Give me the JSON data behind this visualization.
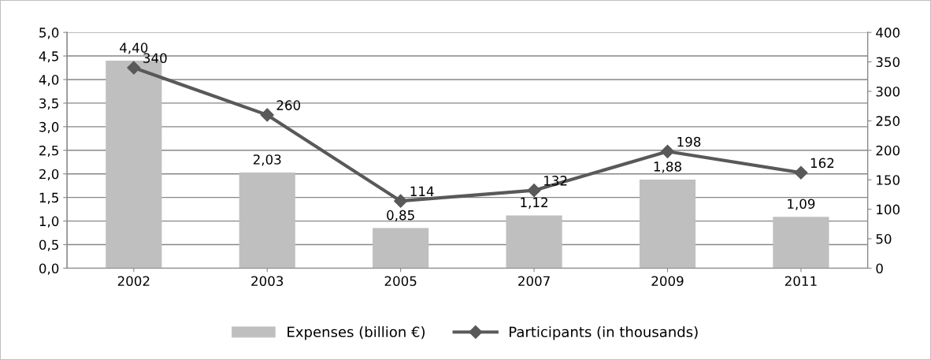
{
  "chart_data": {
    "type": "bar",
    "categories": [
      "2002",
      "2003",
      "2005",
      "2007",
      "2009",
      "2011"
    ],
    "series": [
      {
        "name": "Expenses (billion €)",
        "color": "#bfbfbf",
        "values": [
          4.4,
          2.03,
          0.85,
          1.12,
          1.88,
          1.09
        ],
        "value_labels": [
          "4,40",
          "2,03",
          "0,85",
          "1,12",
          "1,88",
          "1,09"
        ]
      },
      {
        "name": "Participants (in thousands)",
        "type": "line",
        "axis": "y2",
        "color": "#595959",
        "marker": "diamond",
        "values": [
          340,
          260,
          114,
          132,
          198,
          162
        ],
        "value_labels": [
          "340",
          "260",
          "114",
          "132",
          "198",
          "162"
        ]
      }
    ],
    "ylim": [
      0,
      5
    ],
    "yticks": [
      {
        "value": 0,
        "label": "0,0"
      },
      {
        "value": 0.5,
        "label": "0,5"
      },
      {
        "value": 1,
        "label": "1,0"
      },
      {
        "value": 1.5,
        "label": "1,5"
      },
      {
        "value": 2,
        "label": "2,0"
      },
      {
        "value": 2.5,
        "label": "2,5"
      },
      {
        "value": 3,
        "label": "3,0"
      },
      {
        "value": 3.5,
        "label": "3,5"
      },
      {
        "value": 4,
        "label": "4,0"
      },
      {
        "value": 4.5,
        "label": "4,5"
      },
      {
        "value": 5,
        "label": "5,0"
      }
    ],
    "y2lim": [
      0,
      400
    ],
    "y2ticks": [
      0,
      50,
      100,
      150,
      200,
      250,
      300,
      350,
      400
    ],
    "grid": "y",
    "legend": "bottom"
  }
}
